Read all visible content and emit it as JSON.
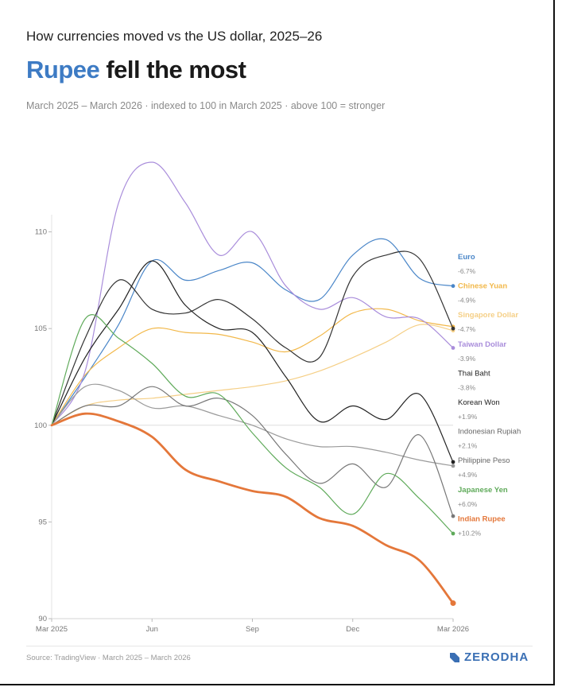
{
  "kicker": "How currencies moved vs the US dollar, 2025–26",
  "headline": {
    "accent": "Rupee",
    "rest": " fell the most"
  },
  "subtitle": "March 2025 – March 2026 · indexed to 100 in March 2025 · above 100 = stronger",
  "source": "Source: TradingView · March 2025 – March 2026",
  "brand": "ZERODHA",
  "chart_data": {
    "type": "line",
    "x": [
      "2025-03",
      "2025-04",
      "2025-05",
      "2025-06",
      "2025-07",
      "2025-08",
      "2025-09",
      "2025-10",
      "2025-11",
      "2025-12",
      "2026-01",
      "2026-02",
      "2026-03"
    ],
    "x_tick_labels": [
      "Mar 2025",
      "Jun",
      "Sep",
      "Dec",
      "Mar 2026"
    ],
    "y_ticks": [
      90,
      95,
      100,
      105,
      110
    ],
    "ylim": [
      90,
      115
    ],
    "baseline": 100,
    "series": [
      {
        "name": "Euro",
        "change": "-6.7%",
        "color": "#4a86c8",
        "bold": false,
        "values": [
          100,
          102.5,
          105.2,
          108.5,
          107.5,
          108.0,
          108.4,
          107.0,
          106.5,
          108.8,
          109.6,
          107.6,
          107.2
        ]
      },
      {
        "name": "Chinese Yuan",
        "change": "-4.9%",
        "color": "#f2b84a",
        "bold": false,
        "values": [
          100,
          102.6,
          104.0,
          105.0,
          104.8,
          104.7,
          104.3,
          103.8,
          104.6,
          105.8,
          106.0,
          105.4,
          105.1
        ]
      },
      {
        "name": "Singapore Dollar",
        "change": "-4.7%",
        "color": "#f5cf86",
        "bold": false,
        "values": [
          100,
          101.0,
          101.3,
          101.4,
          101.6,
          101.8,
          102.0,
          102.3,
          102.8,
          103.5,
          104.3,
          105.2,
          104.9
        ]
      },
      {
        "name": "Taiwan Dollar",
        "change": "-3.9%",
        "color": "#a98ddb",
        "bold": false,
        "values": [
          100,
          102.8,
          111.5,
          113.6,
          111.5,
          108.8,
          110.0,
          107.2,
          106.0,
          106.6,
          105.6,
          105.5,
          104.0
        ]
      },
      {
        "name": "Thai Baht",
        "change": "-3.8%",
        "color": "#333333",
        "bold": false,
        "values": [
          100,
          104.5,
          107.5,
          106.0,
          105.8,
          106.5,
          105.5,
          104.0,
          103.5,
          107.7,
          108.8,
          108.6,
          105.0
        ]
      },
      {
        "name": "Korean Won",
        "change": "+1.9%",
        "color": "#222222",
        "bold": false,
        "values": [
          100,
          103.5,
          106.0,
          108.5,
          106.2,
          105.0,
          104.8,
          102.5,
          100.2,
          101.0,
          100.3,
          101.6,
          98.1
        ]
      },
      {
        "name": "Indonesian Rupiah",
        "change": "+2.1%",
        "color": "#9a9a9a",
        "bold": false,
        "values": [
          100,
          102.0,
          101.8,
          100.9,
          101.0,
          100.5,
          100.0,
          99.3,
          98.9,
          98.9,
          98.6,
          98.2,
          97.9
        ]
      },
      {
        "name": "Philippine Peso",
        "change": "+4.9%",
        "color": "#777777",
        "bold": false,
        "values": [
          100,
          101.0,
          101.0,
          102.0,
          101.0,
          101.4,
          100.5,
          98.5,
          97.0,
          98.0,
          96.8,
          99.5,
          95.3
        ]
      },
      {
        "name": "Japanese Yen",
        "change": "+6.0%",
        "color": "#5faa5a",
        "bold": false,
        "values": [
          100,
          105.5,
          104.5,
          103.2,
          101.5,
          101.6,
          99.6,
          97.8,
          96.8,
          95.4,
          97.5,
          96.2,
          94.4
        ]
      },
      {
        "name": "Indian Rupee",
        "change": "+10.2%",
        "color": "#e4773a",
        "bold": true,
        "values": [
          100,
          100.6,
          100.2,
          99.4,
          97.7,
          97.1,
          96.6,
          96.3,
          95.2,
          94.8,
          93.8,
          93.0,
          90.8
        ]
      }
    ]
  }
}
